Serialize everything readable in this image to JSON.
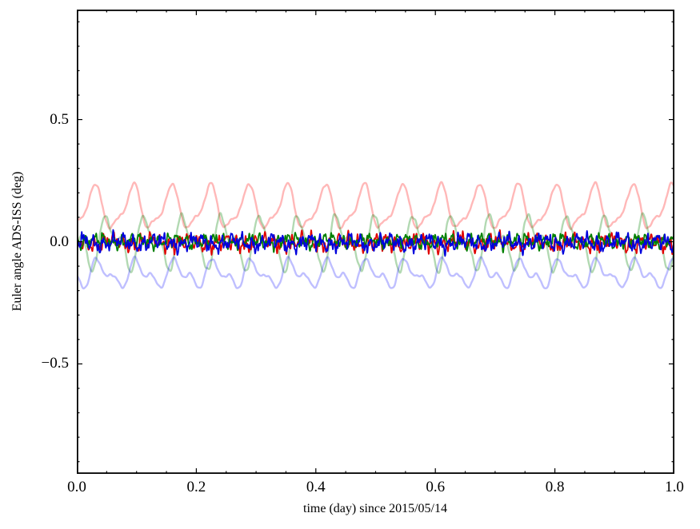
{
  "figure": {
    "background": "#ffffff",
    "axes_edge_color": "#000000"
  },
  "chart_data": {
    "type": "line",
    "title": "",
    "xlabel": "time (day) since 2015/05/14",
    "ylabel": "Euler angle ADS-ISS (deg)",
    "xlim": [
      0,
      1
    ],
    "ylim": [
      -0.95,
      0.95
    ],
    "grid": false,
    "legend": null,
    "xticks": {
      "major": [
        0.0,
        0.2,
        0.4,
        0.6,
        0.8,
        1.0
      ],
      "labels": [
        "0.0",
        "0.2",
        "0.4",
        "0.6",
        "0.8",
        "1.0"
      ],
      "minor_step": 0.05
    },
    "yticks": {
      "major": [
        -0.5,
        0.0,
        0.5
      ],
      "labels": [
        "−0.5",
        "0.0",
        "0.5"
      ],
      "minor_step": 0.1
    },
    "orbital_period_day": 0.0643,
    "samples_per_series": 2400,
    "series": [
      {
        "name": "red-light",
        "description": "pale red periodic curve, peaks ~0.23 every orbit, baseline ~0.06",
        "color": "#ff0000",
        "opacity": 0.28,
        "width": 2.4,
        "mean": 0.068,
        "components": [
          {
            "kind": "pulse",
            "amp": 0.16,
            "period": 0.0643,
            "power": 3,
            "t0": -0.002
          },
          {
            "kind": "sin",
            "amp": 0.018,
            "freq": 31.1,
            "phase": 1.0
          },
          {
            "kind": "sin",
            "amp": 0.008,
            "freq": 15.55,
            "phase": 0.5
          },
          {
            "kind": "noise",
            "amp": 0.008,
            "seed": 21,
            "freq": 45,
            "octaves": 3
          }
        ]
      },
      {
        "name": "green-light",
        "description": "pale green oscillation between about -0.12 and +0.12",
        "color": "#008000",
        "opacity": 0.3,
        "width": 2.4,
        "mean": 0.0,
        "components": [
          {
            "kind": "sin",
            "amp": 0.082,
            "freq": 15.55,
            "phase": 2.6
          },
          {
            "kind": "sin",
            "amp": 0.05,
            "freq": 31.1,
            "phase": 5.5
          },
          {
            "kind": "noise",
            "amp": 0.012,
            "seed": 22,
            "freq": 40,
            "octaves": 3
          }
        ]
      },
      {
        "name": "blue-light",
        "description": "pale blue oscillation between about -0.20 and -0.07",
        "color": "#0000ff",
        "opacity": 0.25,
        "width": 2.4,
        "mean": -0.132,
        "components": [
          {
            "kind": "sin",
            "amp": 0.042,
            "freq": 15.55,
            "phase": 4.2
          },
          {
            "kind": "sin",
            "amp": 0.028,
            "freq": 31.1,
            "phase": 1.8
          },
          {
            "kind": "noise",
            "amp": 0.008,
            "seed": 23,
            "freq": 40,
            "octaves": 3
          }
        ]
      },
      {
        "name": "red",
        "description": "solid red noisy trace around 0, ±0.05",
        "color": "#e00000",
        "opacity": 1,
        "width": 1.7,
        "mean": -0.004,
        "components": [
          {
            "kind": "sin",
            "amp": 0.012,
            "freq": 15.55,
            "phase": 2.1
          },
          {
            "kind": "noise",
            "amp": 0.05,
            "seed": 5,
            "freq": 60,
            "octaves": 5
          }
        ]
      },
      {
        "name": "green",
        "description": "solid dark green noisy trace around 0, ±0.04",
        "color": "#008000",
        "opacity": 1,
        "width": 1.7,
        "mean": 0.002,
        "components": [
          {
            "kind": "sin",
            "amp": 0.01,
            "freq": 15.55,
            "phase": 4.4
          },
          {
            "kind": "noise",
            "amp": 0.04,
            "seed": 9,
            "freq": 55,
            "octaves": 5
          }
        ]
      },
      {
        "name": "blue",
        "description": "solid blue noisy trace around 0, ±0.05",
        "color": "#0000dd",
        "opacity": 1,
        "width": 1.7,
        "mean": -0.004,
        "components": [
          {
            "kind": "sin",
            "amp": 0.012,
            "freq": 15.55,
            "phase": 0.8
          },
          {
            "kind": "noise",
            "amp": 0.048,
            "seed": 3,
            "freq": 65,
            "octaves": 5
          }
        ]
      }
    ]
  }
}
